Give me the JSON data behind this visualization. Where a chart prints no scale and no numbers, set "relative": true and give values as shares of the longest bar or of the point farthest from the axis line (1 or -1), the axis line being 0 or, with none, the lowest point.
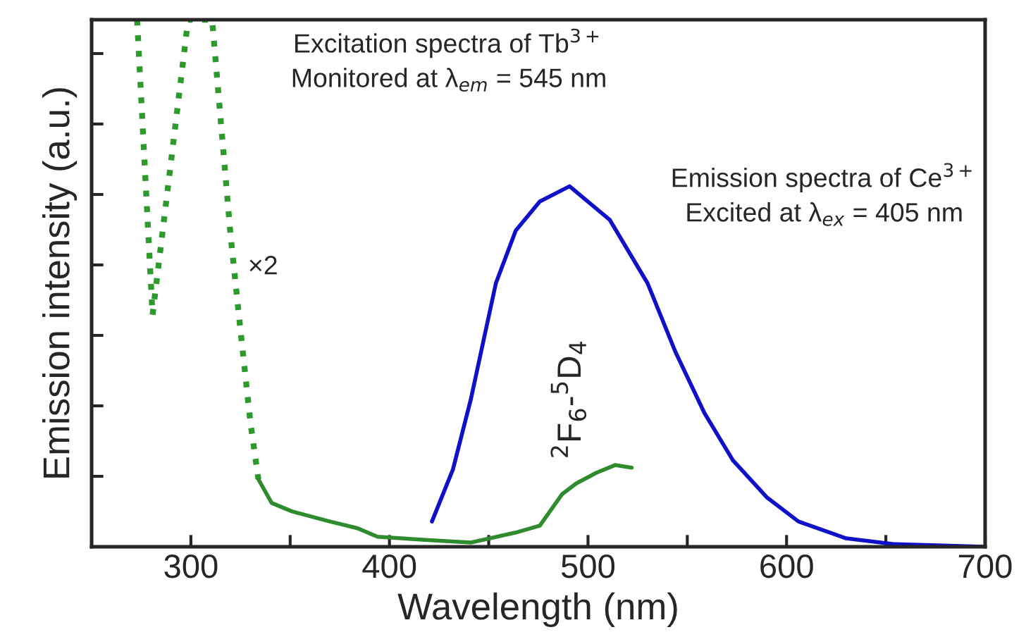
{
  "chart_data": {
    "type": "line",
    "relative": true,
    "xlabel": "Wavelength (nm)",
    "ylabel": "Emission intensity (a.u.)",
    "xlim": [
      250,
      700
    ],
    "xticks": [
      {
        "value": 300,
        "label": "300"
      },
      {
        "value": 350,
        "label": null
      },
      {
        "value": 400,
        "label": "400"
      },
      {
        "value": 450,
        "label": null
      },
      {
        "value": 500,
        "label": "500"
      },
      {
        "value": 550,
        "label": null
      },
      {
        "value": 600,
        "label": "600"
      },
      {
        "value": 650,
        "label": null
      },
      {
        "value": 700,
        "label": "700"
      }
    ],
    "grid": false,
    "legend": false,
    "marker": "none",
    "series": [
      {
        "color": "#2e9a2e",
        "line_style": "dotted",
        "x": [
          272.9,
          280.7,
          298.6,
          310.7,
          320,
          325,
          330,
          334
        ],
        "values": [
          1.0,
          0.44,
          1.0,
          1.0,
          0.59,
          0.41,
          0.235,
          0.128
        ]
      },
      {
        "color": "#2e8b2e",
        "line_style": "solid",
        "x": [
          334,
          340.7,
          351,
          370,
          384,
          394,
          418,
          441,
          463.6,
          475.7,
          487,
          494,
          504,
          513.6,
          522
        ],
        "values": [
          0.128,
          0.083,
          0.067,
          0.048,
          0.035,
          0.019,
          0.013,
          0.008,
          0.027,
          0.04,
          0.1,
          0.12,
          0.14,
          0.155,
          0.15
        ]
      },
      {
        "color": "#1010c8",
        "line_style": "solid",
        "x": [
          421.4,
          432,
          441,
          453.6,
          463.6,
          475.7,
          490.7,
          511,
          530,
          544,
          558.6,
          573,
          590,
          606,
          630,
          654,
          700
        ],
        "values": [
          0.048,
          0.147,
          0.28,
          0.5,
          0.6,
          0.655,
          0.684,
          0.62,
          0.5,
          0.37,
          0.254,
          0.164,
          0.094,
          0.048,
          0.016,
          0.005,
          0.0
        ]
      }
    ],
    "annotations": [
      "Excitation spectra of Tb$^{3+}$",
      "Monitored at λ$_{em}$ = 545 nm",
      "×2",
      "Emission spectra of Ce$^{3+}$",
      "Excited at λ$_{ex}$ = 405 nm",
      "$^{2}$F$_{6}$-$^{5}$D$_{4}$"
    ]
  }
}
